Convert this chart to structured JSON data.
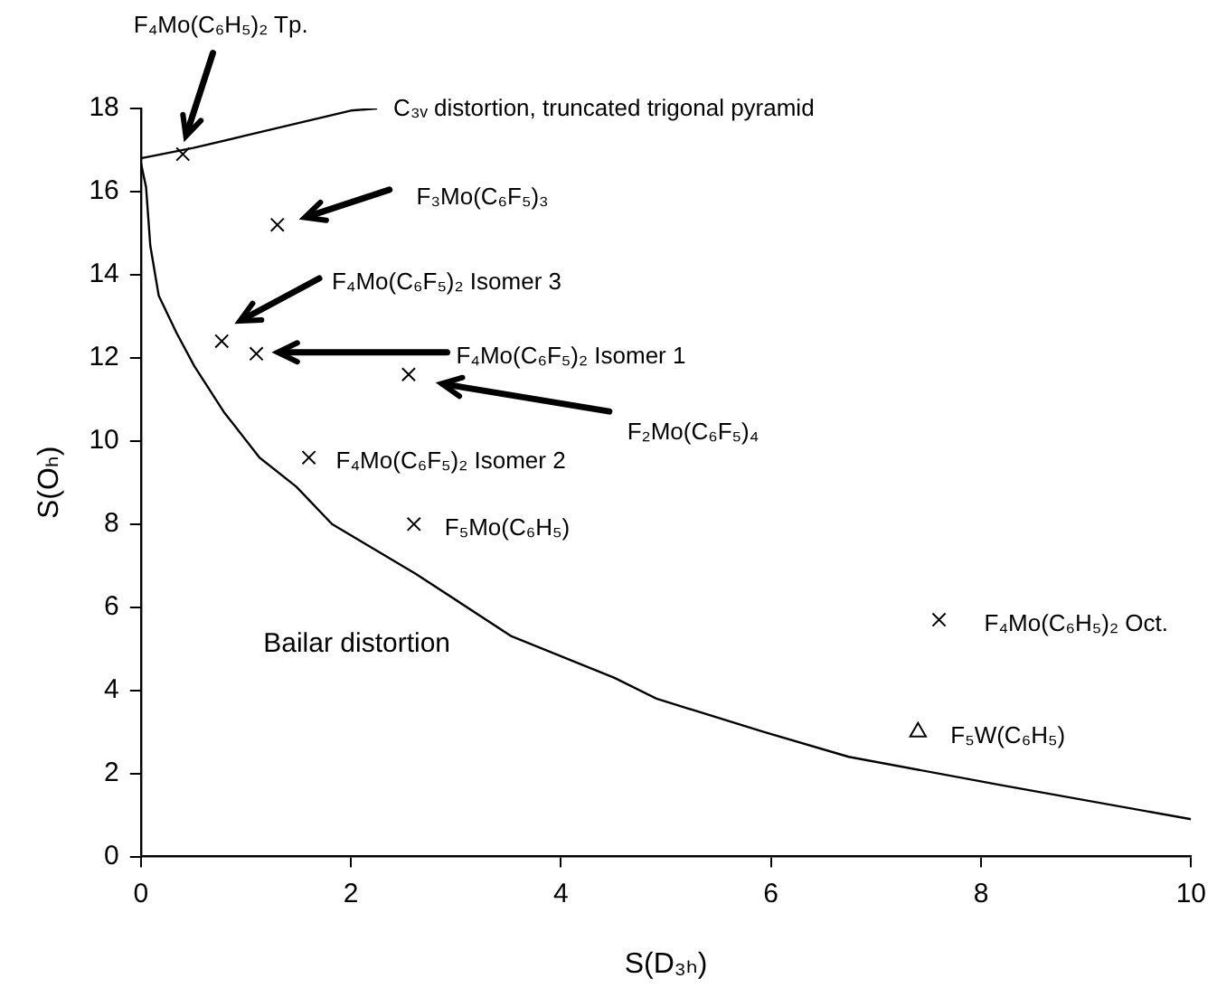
{
  "chart_data": {
    "type": "scatter",
    "xlabel": "S(D₃ₕ)",
    "ylabel": "S(Oₕ)",
    "xlim": [
      0,
      10
    ],
    "xticks": [
      0,
      2,
      4,
      6,
      8,
      10
    ],
    "ylim": [
      0,
      18
    ],
    "yticks": [
      0,
      2,
      4,
      6,
      8,
      10,
      12,
      14,
      16,
      18
    ],
    "grid": false,
    "legend": false,
    "series": [
      {
        "type": "line",
        "color": "#000000",
        "marker": "none",
        "line_style": "solid",
        "x": [
          0,
          0.5,
          1,
          1.5,
          2,
          2.25
        ],
        "values": [
          16.8,
          17.05,
          17.35,
          17.65,
          17.95,
          18.0
        ]
      },
      {
        "type": "line",
        "color": "#000000",
        "marker": "none",
        "line_style": "solid",
        "x": [
          0,
          0.05,
          0.09,
          0.17,
          0.34,
          0.51,
          0.79,
          1.13,
          1.48,
          1.82,
          2.62,
          3.53,
          4.51,
          4.91,
          5.93,
          6.74,
          8.23,
          10
        ],
        "values": [
          16.7,
          16.1,
          14.7,
          13.5,
          12.6,
          11.8,
          10.7,
          9.6,
          8.9,
          8.0,
          6.8,
          5.3,
          4.3,
          3.8,
          3.0,
          2.4,
          1.7,
          0.9
        ]
      },
      {
        "type": "scatter",
        "color": "#000000",
        "marker": "cross",
        "x": [
          0.4,
          1.3,
          0.77,
          1.1,
          2.55,
          1.6,
          2.6,
          7.6
        ],
        "values": [
          16.9,
          15.2,
          12.4,
          12.1,
          11.6,
          9.6,
          8.0,
          5.7
        ]
      },
      {
        "type": "scatter",
        "color": "#000000",
        "marker": "triangle",
        "x": [
          7.4
        ],
        "values": [
          3.0
        ]
      }
    ],
    "annotations": [
      {
        "text": "F₄Mo(C₆F₅)₂ Isomer 2",
        "x": 1.6,
        "y": 9.6
      },
      {
        "text": "F₅Mo(C₆H₅)",
        "x": 2.6,
        "y": 8.0
      },
      {
        "text": "F₄Mo(C₆H₅)₂ Oct.",
        "x": 7.6,
        "y": 5.7
      },
      {
        "text": "F₅W(C₆H₅)",
        "x": 7.4,
        "y": 3.0
      },
      {
        "text": "C₃ᵥ distortion, truncated trigonal pyramid",
        "x": 2.25,
        "y": 18.0
      },
      "F₄Mo(C₆H₅)₂ Tp.",
      "F₃Mo(C₆F₅)₃",
      "F₄Mo(C₆F₅)₂ Isomer 3",
      "F₄Mo(C₆F₅)₂ Isomer 1",
      "F₂Mo(C₆F₅)₄",
      "Bailar distortion"
    ]
  }
}
